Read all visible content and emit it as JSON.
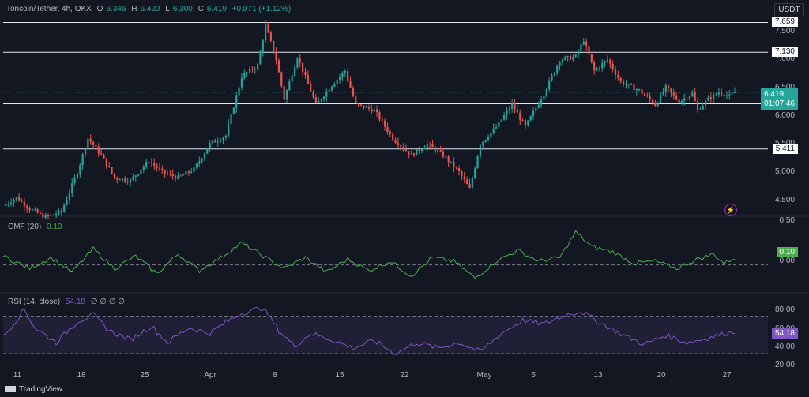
{
  "header": {
    "symbol": "Toncoin/Tether, 4h, OKX",
    "o_label": "O",
    "o": "6.346",
    "h_label": "H",
    "h": "6.420",
    "l_label": "L",
    "l": "6.300",
    "c_label": "C",
    "c": "6.419",
    "change": "+0.071 (+1.12%)"
  },
  "currency_button": "USDT",
  "price_axis_labels": [
    "7.500",
    "7.000",
    "6.500",
    "6.000",
    "5.500",
    "5.000",
    "4.500"
  ],
  "level_tags": [
    "7.659",
    "7.130",
    "6.214",
    "5.411"
  ],
  "price_tag": {
    "value": "6.419",
    "countdown": "01:07:46"
  },
  "cmf": {
    "title": "CMF (20)",
    "value": "0.10",
    "axis_labels": [
      "0.50",
      "0.00"
    ],
    "tag": "0.10"
  },
  "rsi": {
    "title": "RSI (14, close)",
    "value": "54.18",
    "axis_labels": [
      "80.00",
      "60.00",
      "40.00",
      "20.00"
    ],
    "tag": "54.18"
  },
  "time_labels": [
    "11",
    "18",
    "25",
    "Apr",
    "8",
    "15",
    "22",
    "May",
    "6",
    "13",
    "20",
    "27"
  ],
  "footer": "TradingView",
  "colors": {
    "up": "#26a69a",
    "down": "#ef5350",
    "cmf": "#4caf50",
    "rsi": "#7e57c2",
    "background": "#131722"
  },
  "chart_data": {
    "type": "candlestick",
    "title": "Toncoin/Tether, 4h, OKX",
    "ylim": [
      4.3,
      7.75
    ],
    "horizontal_levels": [
      7.659,
      7.13,
      6.214,
      5.411
    ],
    "close_path": [
      [
        0,
        4.4
      ],
      [
        5,
        4.55
      ],
      [
        10,
        4.35
      ],
      [
        16,
        4.2
      ],
      [
        22,
        4.3
      ],
      [
        28,
        5.0
      ],
      [
        32,
        5.6
      ],
      [
        37,
        5.3
      ],
      [
        42,
        4.9
      ],
      [
        48,
        4.85
      ],
      [
        55,
        5.2
      ],
      [
        60,
        5.0
      ],
      [
        66,
        4.9
      ],
      [
        72,
        5.05
      ],
      [
        78,
        5.5
      ],
      [
        84,
        5.65
      ],
      [
        90,
        6.7
      ],
      [
        96,
        6.9
      ],
      [
        99,
        7.6
      ],
      [
        103,
        7.0
      ],
      [
        106,
        6.3
      ],
      [
        111,
        7.05
      ],
      [
        118,
        6.2
      ],
      [
        124,
        6.55
      ],
      [
        129,
        6.8
      ],
      [
        133,
        6.2
      ],
      [
        140,
        6.1
      ],
      [
        147,
        5.6
      ],
      [
        154,
        5.3
      ],
      [
        160,
        5.5
      ],
      [
        166,
        5.3
      ],
      [
        172,
        5.0
      ],
      [
        176,
        4.7
      ],
      [
        180,
        5.5
      ],
      [
        186,
        5.8
      ],
      [
        192,
        6.2
      ],
      [
        197,
        5.8
      ],
      [
        204,
        6.4
      ],
      [
        210,
        7.0
      ],
      [
        216,
        7.05
      ],
      [
        219,
        7.35
      ],
      [
        223,
        6.8
      ],
      [
        228,
        7.0
      ],
      [
        233,
        6.6
      ],
      [
        240,
        6.45
      ],
      [
        246,
        6.2
      ],
      [
        250,
        6.5
      ],
      [
        255,
        6.25
      ],
      [
        260,
        6.4
      ],
      [
        262,
        6.1
      ],
      [
        266,
        6.3
      ],
      [
        270,
        6.42
      ],
      [
        274,
        6.35
      ],
      [
        276,
        6.419
      ]
    ],
    "cmf_path": [
      [
        0,
        0.12
      ],
      [
        10,
        -0.05
      ],
      [
        18,
        0.1
      ],
      [
        26,
        -0.1
      ],
      [
        34,
        0.22
      ],
      [
        42,
        -0.05
      ],
      [
        50,
        0.12
      ],
      [
        58,
        -0.12
      ],
      [
        66,
        0.15
      ],
      [
        74,
        -0.08
      ],
      [
        82,
        0.1
      ],
      [
        90,
        0.3
      ],
      [
        98,
        0.12
      ],
      [
        106,
        -0.05
      ],
      [
        114,
        0.1
      ],
      [
        122,
        -0.1
      ],
      [
        130,
        0.08
      ],
      [
        138,
        -0.08
      ],
      [
        146,
        0.05
      ],
      [
        154,
        -0.15
      ],
      [
        162,
        0.1
      ],
      [
        170,
        0.05
      ],
      [
        178,
        -0.18
      ],
      [
        186,
        0.05
      ],
      [
        194,
        0.2
      ],
      [
        202,
        0.05
      ],
      [
        210,
        0.1
      ],
      [
        216,
        0.45
      ],
      [
        222,
        0.25
      ],
      [
        230,
        0.18
      ],
      [
        238,
        0.02
      ],
      [
        246,
        0.05
      ],
      [
        254,
        -0.05
      ],
      [
        262,
        0.08
      ],
      [
        268,
        0.15
      ],
      [
        272,
        0.02
      ],
      [
        276,
        0.1
      ]
    ],
    "rsi_path": [
      [
        0,
        48
      ],
      [
        8,
        78
      ],
      [
        12,
        58
      ],
      [
        20,
        42
      ],
      [
        28,
        65
      ],
      [
        34,
        72
      ],
      [
        40,
        55
      ],
      [
        48,
        45
      ],
      [
        56,
        60
      ],
      [
        62,
        42
      ],
      [
        70,
        58
      ],
      [
        78,
        52
      ],
      [
        84,
        64
      ],
      [
        90,
        74
      ],
      [
        98,
        80
      ],
      [
        104,
        55
      ],
      [
        110,
        38
      ],
      [
        116,
        52
      ],
      [
        124,
        45
      ],
      [
        132,
        36
      ],
      [
        140,
        44
      ],
      [
        148,
        30
      ],
      [
        156,
        42
      ],
      [
        164,
        36
      ],
      [
        172,
        42
      ],
      [
        180,
        32
      ],
      [
        188,
        52
      ],
      [
        196,
        66
      ],
      [
        204,
        62
      ],
      [
        212,
        72
      ],
      [
        218,
        76
      ],
      [
        226,
        62
      ],
      [
        234,
        50
      ],
      [
        242,
        40
      ],
      [
        250,
        50
      ],
      [
        258,
        42
      ],
      [
        266,
        47
      ],
      [
        272,
        52
      ],
      [
        276,
        54.18
      ]
    ],
    "rsi_band": [
      30,
      70
    ],
    "rsi_mid": 50,
    "cmf_ylim": [
      -0.35,
      0.6
    ],
    "rsi_ylim": [
      18,
      90
    ]
  }
}
